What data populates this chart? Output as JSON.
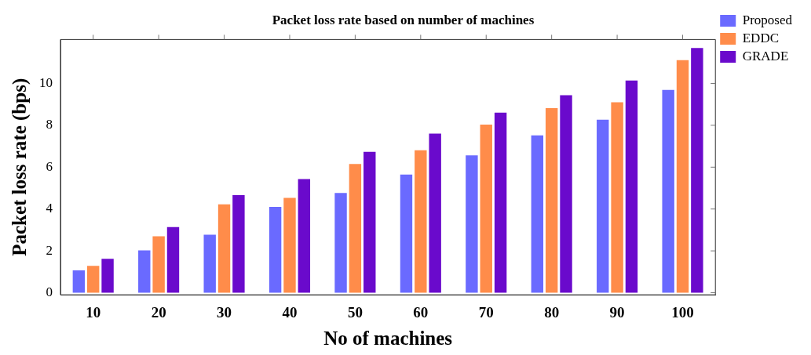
{
  "chart_data": {
    "type": "bar",
    "title": "Packet loss rate based on number of machines",
    "xlabel": "No of machines",
    "ylabel": "Packet loss rate (bps)",
    "categories": [
      "10",
      "20",
      "30",
      "40",
      "50",
      "60",
      "70",
      "80",
      "90",
      "100"
    ],
    "series": [
      {
        "name": "Proposed",
        "color": "#6a6aff",
        "values": [
          1.07,
          2.02,
          2.77,
          4.1,
          4.77,
          5.65,
          6.56,
          7.52,
          8.27,
          9.69
        ]
      },
      {
        "name": "EDDC",
        "color": "#ff8c4a",
        "values": [
          1.28,
          2.7,
          4.22,
          4.53,
          6.15,
          6.81,
          8.03,
          8.82,
          9.1,
          11.11
        ]
      },
      {
        "name": "GRADE",
        "color": "#6a0acc",
        "values": [
          1.62,
          3.14,
          4.66,
          5.43,
          6.73,
          7.6,
          8.6,
          9.44,
          10.14,
          11.69
        ]
      }
    ],
    "ylim": [
      -0.1,
      12.1
    ],
    "yticks": [
      0,
      2,
      4,
      6,
      8,
      10
    ],
    "grid": false,
    "legend": "top right"
  }
}
